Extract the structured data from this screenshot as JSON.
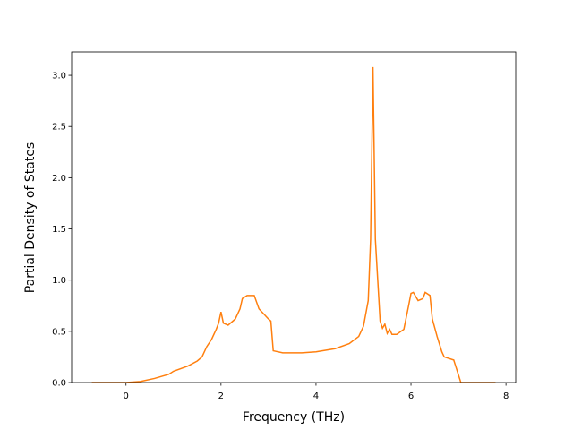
{
  "chart_data": {
    "type": "line",
    "xlabel": "Frequency (THz)",
    "ylabel": "Partial Density of States",
    "xlim": [
      -1.145,
      8.205
    ],
    "ylim": [
      0,
      3.228
    ],
    "xticks": [
      0,
      2,
      4,
      6,
      8
    ],
    "yticks": [
      {
        "value": 0,
        "label": "0.0"
      },
      {
        "value": 0.5,
        "label": "0.5"
      },
      {
        "value": 1,
        "label": "1.0"
      },
      {
        "value": 1.5,
        "label": "1.5"
      },
      {
        "value": 2,
        "label": "2.0"
      },
      {
        "value": 2.5,
        "label": "2.5"
      },
      {
        "value": 3,
        "label": "3.0"
      }
    ],
    "x": [
      -0.72,
      0,
      0.3,
      0.6,
      0.9,
      1.0,
      1.3,
      1.5,
      1.6,
      1.7,
      1.8,
      1.9,
      1.95,
      2.0,
      2.05,
      2.15,
      2.3,
      2.4,
      2.45,
      2.55,
      2.7,
      2.8,
      3.0,
      3.05,
      3.1,
      3.3,
      3.7,
      4.0,
      4.4,
      4.7,
      4.9,
      5.0,
      5.1,
      5.15,
      5.2,
      5.25,
      5.3,
      5.35,
      5.4,
      5.45,
      5.5,
      5.55,
      5.6,
      5.7,
      5.85,
      5.95,
      6.0,
      6.05,
      6.15,
      6.25,
      6.3,
      6.4,
      6.45,
      6.55,
      6.65,
      6.7,
      6.9,
      7.05,
      7.78
    ],
    "series": [
      {
        "color": "#ff7f0e",
        "values": [
          0,
          0,
          0.01,
          0.04,
          0.08,
          0.11,
          0.16,
          0.21,
          0.25,
          0.35,
          0.42,
          0.52,
          0.58,
          0.69,
          0.58,
          0.56,
          0.62,
          0.72,
          0.82,
          0.85,
          0.85,
          0.72,
          0.62,
          0.6,
          0.31,
          0.29,
          0.29,
          0.3,
          0.33,
          0.38,
          0.45,
          0.55,
          0.8,
          1.4,
          3.08,
          1.4,
          1.0,
          0.6,
          0.53,
          0.57,
          0.48,
          0.52,
          0.47,
          0.47,
          0.52,
          0.75,
          0.87,
          0.88,
          0.8,
          0.82,
          0.88,
          0.85,
          0.62,
          0.45,
          0.3,
          0.25,
          0.22,
          0,
          0
        ]
      }
    ]
  }
}
